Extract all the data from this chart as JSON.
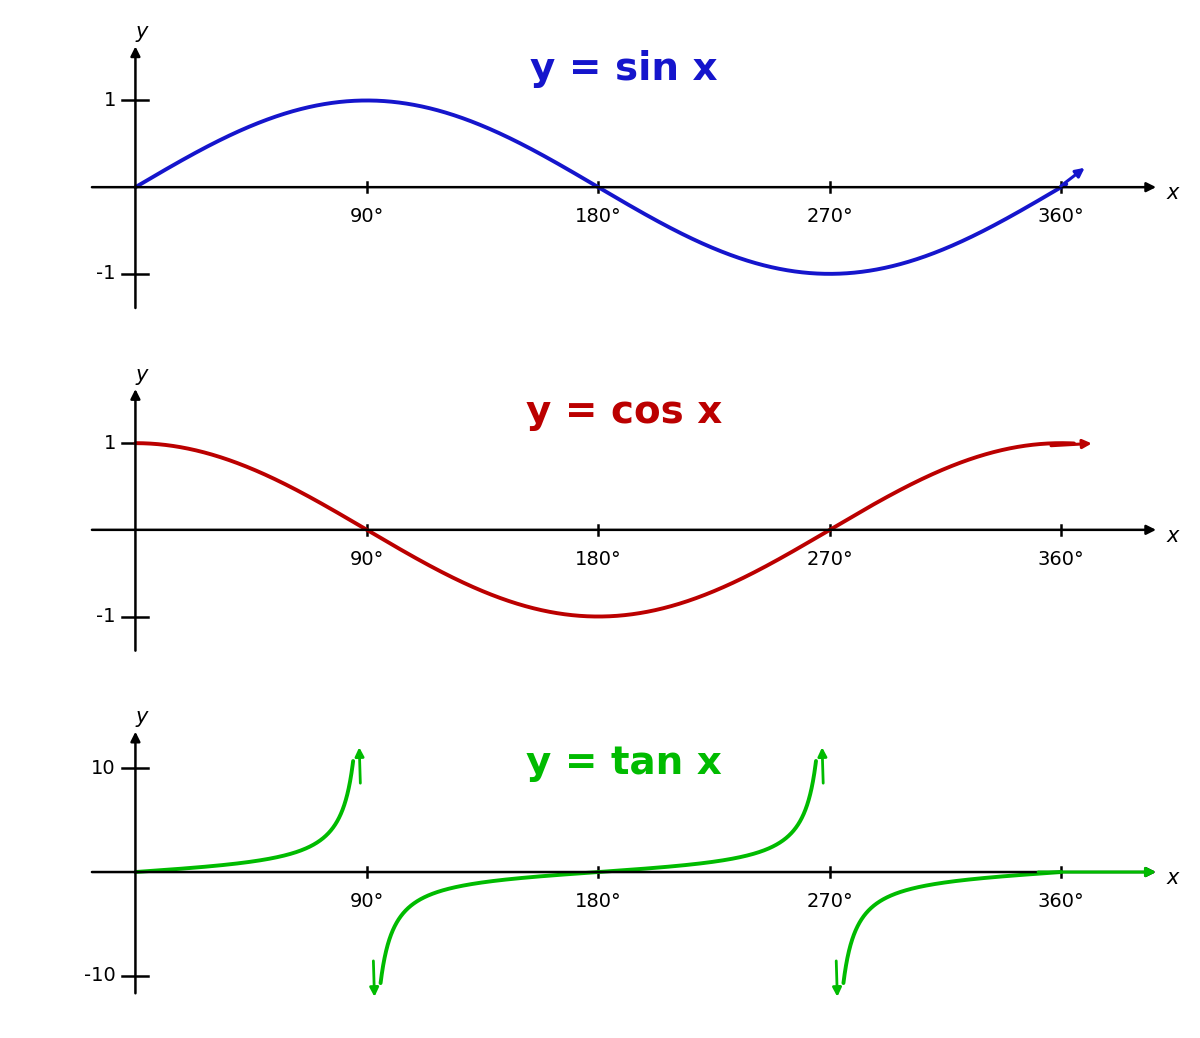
{
  "title_sin": "y = sin x",
  "title_cos": "y = cos x",
  "title_tan": "y = tan x",
  "color_sin": "#1515CC",
  "color_cos": "#BB0000",
  "color_tan": "#00BB00",
  "color_axes": "#000000",
  "bg_color": "#FFFFFF",
  "xticks": [
    90,
    180,
    270,
    360
  ],
  "sin_ylim": [
    -1.55,
    1.8
  ],
  "cos_ylim": [
    -1.55,
    1.8
  ],
  "tan_ylim": [
    -13,
    15
  ],
  "xlim": [
    -20,
    400
  ],
  "title_fontsize": 28,
  "tick_fontsize": 14,
  "label_fontsize": 14,
  "line_width": 2.8,
  "axis_lw": 1.8
}
